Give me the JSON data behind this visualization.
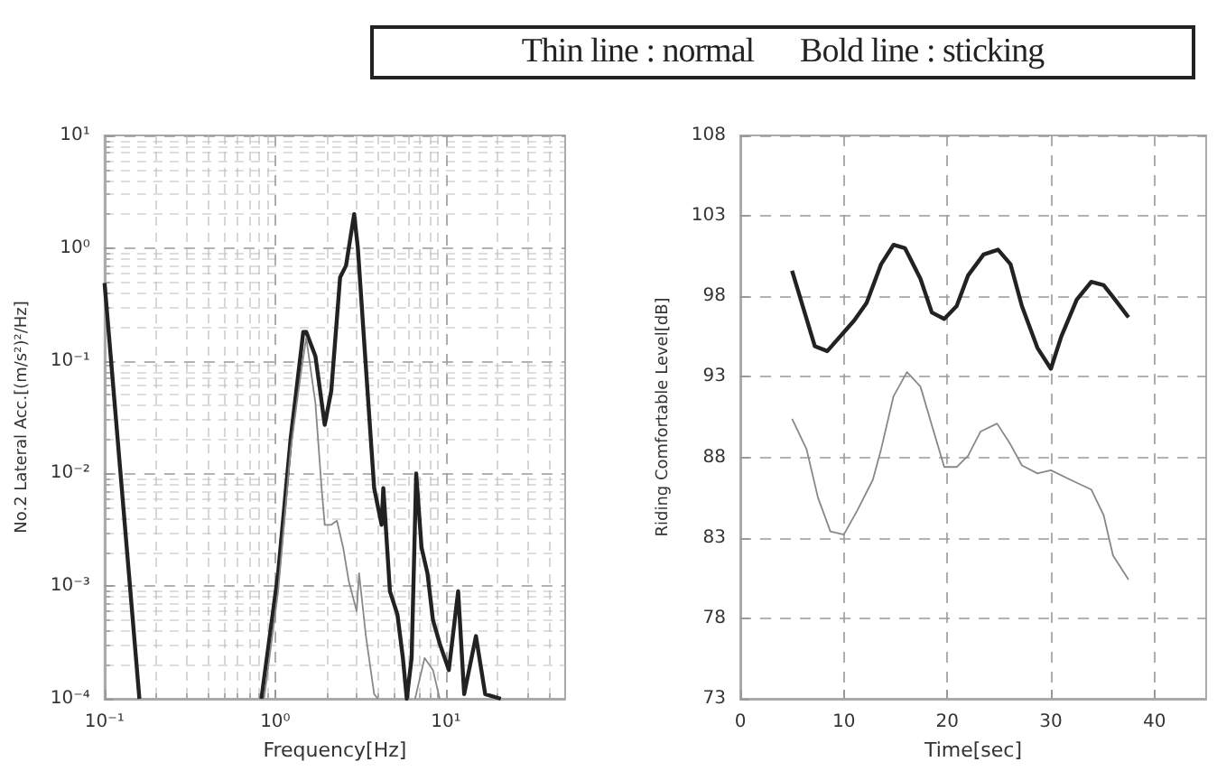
{
  "chart_data": [
    {
      "type": "line",
      "xlabel": "Frequency[Hz]",
      "ylabel": "No.2 Lateral Acc.[(m/s²)²/Hz]",
      "log": "xy",
      "xlim": [
        0.1,
        50
      ],
      "ylim": [
        0.0001,
        10
      ],
      "xticks": [
        {
          "value": 0.1,
          "label": "10⁻¹"
        },
        {
          "value": 1,
          "label": "10⁰"
        },
        {
          "value": 10,
          "label": "10¹"
        }
      ],
      "yticks": [
        {
          "value": 0.0001,
          "label": "10⁻⁴"
        },
        {
          "value": 0.001,
          "label": "10⁻³"
        },
        {
          "value": 0.01,
          "label": "10⁻²"
        },
        {
          "value": 0.1,
          "label": "10⁻¹"
        },
        {
          "value": 1,
          "label": "10⁰"
        },
        {
          "value": 10,
          "label": "10¹"
        }
      ],
      "grid": true,
      "annotations": [
        "Thin line : normal      Bold line : sticking"
      ],
      "series": [
        {
          "color": "#222222",
          "x": [
            0.1,
            0.16,
            0.5,
            0.83,
            1.04,
            1.23,
            1.46,
            1.52,
            1.72,
            1.95,
            2.13,
            2.4,
            2.6,
            2.9,
            3.05,
            3.4,
            3.8,
            4.2,
            4.3,
            4.7,
            5.2,
            5.6,
            5.9,
            6.3,
            6.7,
            7.2,
            7.8,
            8.4,
            9.2,
            10.4,
            11.8,
            12.8,
            15,
            17,
            21
          ],
          "values": [
            0.49,
            0.0001,
            null,
            0.0001,
            0.0013,
            0.02,
            0.18,
            0.18,
            0.11,
            0.027,
            0.054,
            0.55,
            0.7,
            2.0,
            1.0,
            0.087,
            0.0074,
            0.0035,
            0.0074,
            0.0009,
            0.00056,
            0.00023,
            0.0001,
            0.00023,
            0.01,
            0.0022,
            0.0013,
            0.0005,
            0.00031,
            0.00018,
            0.0009,
            0.00011,
            0.00036,
            0.00011,
            0.0001
          ]
        },
        {
          "color": "#888888",
          "x": [
            0.86,
            1.04,
            1.23,
            1.4,
            1.52,
            1.72,
            1.87,
            1.95,
            2.13,
            2.3,
            2.5,
            2.7,
            3.0,
            3.1,
            3.4,
            3.8,
            4.0,
            5.0,
            6.6,
            7.5,
            8.4,
            9.2
          ],
          "values": [
            0.0001,
            0.0009,
            0.016,
            0.07,
            0.16,
            0.042,
            0.0074,
            0.0035,
            0.0035,
            0.0038,
            0.0022,
            0.0011,
            0.0006,
            0.0013,
            0.00036,
            0.00011,
            0.0001,
            null,
            0.0001,
            0.00023,
            0.00018,
            0.0001
          ]
        }
      ]
    },
    {
      "type": "line",
      "xlabel": "Time[sec]",
      "ylabel": "Riding Comfortable Level[dB]",
      "xlim": [
        0,
        45
      ],
      "ylim": [
        73,
        108
      ],
      "xticks": [
        0,
        10,
        20,
        30,
        40
      ],
      "yticks": [
        73,
        78,
        83,
        88,
        93,
        98,
        103,
        108
      ],
      "grid": true,
      "series": [
        {
          "color": "#222222",
          "x": [
            5,
            7.2,
            8.4,
            11,
            12.2,
            13.6,
            14.8,
            15.9,
            17.4,
            18.5,
            19.7,
            20.9,
            22,
            23.5,
            24.9,
            26.1,
            27.2,
            28.7,
            30,
            31,
            32.5,
            33.9,
            35.1,
            36.2,
            37.5
          ],
          "values": [
            99.6,
            94.9,
            94.6,
            96.5,
            97.6,
            100,
            101.2,
            101,
            99.1,
            97,
            96.6,
            97.4,
            99.3,
            100.6,
            100.9,
            100,
            97.4,
            94.8,
            93.5,
            95.5,
            97.8,
            98.9,
            98.7,
            97.8,
            96.7
          ]
        },
        {
          "color": "#888888",
          "x": [
            5,
            6.4,
            7.5,
            8.7,
            10,
            11.3,
            12.8,
            13.6,
            14.8,
            16.1,
            17.4,
            18.5,
            19.7,
            20.9,
            22,
            23.2,
            24.8,
            26.1,
            27.2,
            28.7,
            30,
            31.9,
            33.9,
            35.1,
            36,
            37.5
          ],
          "values": [
            90.4,
            88.5,
            85.5,
            83.4,
            83.2,
            84.7,
            86.6,
            88.5,
            91.8,
            93.3,
            92.4,
            90,
            87.4,
            87.4,
            88.1,
            89.6,
            90.1,
            88.8,
            87.5,
            87,
            87.2,
            86.6,
            86,
            84.4,
            81.9,
            80.4
          ]
        }
      ]
    }
  ]
}
